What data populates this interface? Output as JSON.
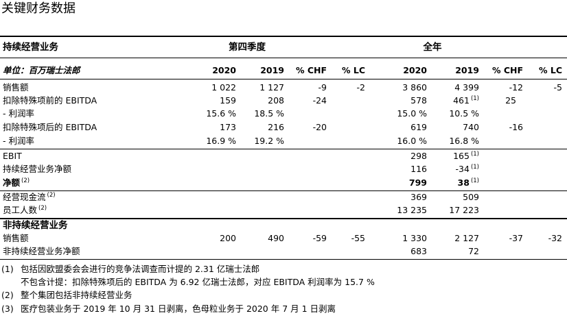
{
  "title": "关键财务数据",
  "header": {
    "section": "持续经营业务",
    "q4": "第四季度",
    "full_year": "全年"
  },
  "columns": {
    "unit": "单位：百万瑞士法郎",
    "q4_2020": "2020",
    "q4_2019": "2019",
    "q4_chf": "% CHF",
    "q4_lc": "% LC",
    "fy_2020": "2020",
    "fy_2019": "2019",
    "fy_chf": "% CHF",
    "fy_lc": "% LC"
  },
  "rows": [
    {
      "label": "销售额",
      "note": "",
      "q4_2020": "1 022",
      "q4_2019": "1 127",
      "q4_chf": "-9",
      "q4_lc": "-2",
      "fy_2020": "3 860",
      "fy_2019": "4 399",
      "fy_2019_note": "",
      "fy_chf": "-12",
      "fy_lc": "-5"
    },
    {
      "label": "扣除特殊项前的 EBITDA",
      "note": "",
      "q4_2020": "159",
      "q4_2019": "208",
      "q4_chf": "-24",
      "q4_lc": "",
      "fy_2020": "578",
      "fy_2019": "461",
      "fy_2019_note": "(1)",
      "fy_chf": "25",
      "fy_lc": ""
    },
    {
      "label": "- 利润率",
      "note": "",
      "q4_2020": "15.6 %",
      "q4_2019": "18.5 %",
      "q4_chf": "",
      "q4_lc": "",
      "fy_2020": "15.0 %",
      "fy_2019": "10.5 %",
      "fy_2019_note": "",
      "fy_chf": "",
      "fy_lc": ""
    },
    {
      "label": "扣除特殊项后的 EBITDA",
      "note": "",
      "q4_2020": "173",
      "q4_2019": "216",
      "q4_chf": "-20",
      "q4_lc": "",
      "fy_2020": "619",
      "fy_2019": "740",
      "fy_2019_note": "",
      "fy_chf": "-16",
      "fy_lc": ""
    },
    {
      "label": "- 利润率",
      "note": "",
      "q4_2020": "16.9 %",
      "q4_2019": "19.2 %",
      "q4_chf": "",
      "q4_lc": "",
      "fy_2020": "16.0 %",
      "fy_2019": "16.8 %",
      "fy_2019_note": "",
      "fy_chf": "",
      "fy_lc": ""
    },
    {
      "label": "EBIT",
      "note": "",
      "q4_2020": "",
      "q4_2019": "",
      "q4_chf": "",
      "q4_lc": "",
      "fy_2020": "298",
      "fy_2019": "165",
      "fy_2019_note": "(1)",
      "fy_chf": "",
      "fy_lc": ""
    },
    {
      "label": "持续经营业务净额",
      "note": "",
      "q4_2020": "",
      "q4_2019": "",
      "q4_chf": "",
      "q4_lc": "",
      "fy_2020": "116",
      "fy_2019": "-34",
      "fy_2019_note": "(1)",
      "fy_chf": "",
      "fy_lc": ""
    },
    {
      "label": "净额",
      "note": "(2)",
      "q4_2020": "",
      "q4_2019": "",
      "q4_chf": "",
      "q4_lc": "",
      "fy_2020": "799",
      "fy_2019": "38",
      "fy_2019_note": "(1)",
      "fy_chf": "",
      "fy_lc": ""
    },
    {
      "label": "经营现金流",
      "note": "(2)",
      "q4_2020": "",
      "q4_2019": "",
      "q4_chf": "",
      "q4_lc": "",
      "fy_2020": "369",
      "fy_2019": "509",
      "fy_2019_note": "",
      "fy_chf": "",
      "fy_lc": ""
    },
    {
      "label": "员工人数",
      "note": "(2)",
      "q4_2020": "",
      "q4_2019": "",
      "q4_chf": "",
      "q4_lc": "",
      "fy_2020": "13 235",
      "fy_2019": "17 223",
      "fy_2019_note": "",
      "fy_chf": "",
      "fy_lc": ""
    }
  ],
  "discontinued": {
    "section": "非持续经营业务",
    "rows": [
      {
        "label": "销售额",
        "q4_2020": "200",
        "q4_2019": "490",
        "q4_chf": "-59",
        "q4_lc": "-55",
        "fy_2020": "1 330",
        "fy_2019": "2 127",
        "fy_chf": "-37",
        "fy_lc": "-32"
      },
      {
        "label": "非持续经营业务净额",
        "q4_2020": "",
        "q4_2019": "",
        "q4_chf": "",
        "q4_lc": "",
        "fy_2020": "683",
        "fy_2019": "72",
        "fy_chf": "",
        "fy_lc": ""
      }
    ]
  },
  "footnotes": [
    {
      "mark": "(1)",
      "text": "包括因欧盟委会会进行的竞争法调查而计提的 2.31 亿瑞士法郎"
    },
    {
      "mark": "",
      "text": "不包含计提：扣除特殊项后的 EBITDA 为 6.92 亿瑞士法郎，对应 EBITDA 利润率为 15.7 %"
    },
    {
      "mark": "(2)",
      "text": "整个集团包括非持续经营业务"
    },
    {
      "mark": "(3)",
      "text": "医疗包装业务于 2019 年 10 月 31 日剥离，色母粒业务于 2020 年 7 月 1 日剥离"
    }
  ]
}
